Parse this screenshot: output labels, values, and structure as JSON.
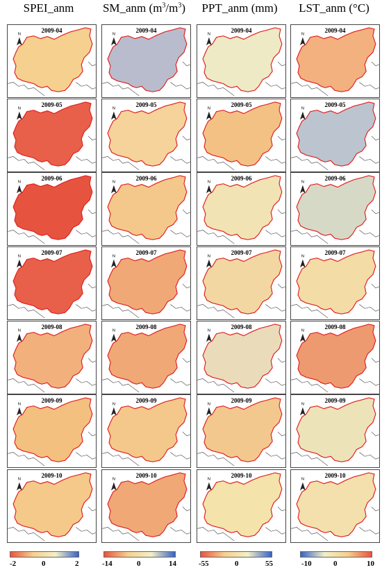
{
  "columns": [
    {
      "header": "SPEI_anm",
      "header_sup": ""
    },
    {
      "header": "SM_anm (m",
      "header_sup": "3",
      "header_mid": "/m",
      "header_sup2": "3",
      "header_end": ")"
    },
    {
      "header": "PPT_anm (mm)",
      "header_sup": ""
    },
    {
      "header": "LST_anm (°C)",
      "header_sup": ""
    }
  ],
  "dates": [
    "2009-04",
    "2009-05",
    "2009-06",
    "2009-07",
    "2009-08",
    "2009-09",
    "2009-10"
  ],
  "north_label": "N",
  "legends": [
    {
      "ticks": [
        "-2",
        "0",
        "2"
      ],
      "gradient": [
        "#e8553f",
        "#f7cf8e",
        "#f2f0c8",
        "#3a63c4"
      ]
    },
    {
      "ticks": [
        "-14",
        "0",
        "14"
      ],
      "gradient": [
        "#e8553f",
        "#f7cf8e",
        "#f2f0c8",
        "#3a63c4"
      ]
    },
    {
      "ticks": [
        "-55",
        "0",
        "55"
      ],
      "gradient": [
        "#e8553f",
        "#f7cf8e",
        "#f2f0c8",
        "#3a63c4"
      ]
    },
    {
      "ticks": [
        "-10",
        "0",
        "10"
      ],
      "gradient": [
        "#3a63c4",
        "#f2f0c8",
        "#f7cf8e",
        "#e8553f"
      ]
    }
  ],
  "panel_fill": [
    [
      "#f6d08f",
      "#e8604a",
      "#e65440",
      "#e8604a",
      "#f2b07c",
      "#f4c07f",
      "#f5c98a"
    ],
    [
      "#b9bccc",
      "#f5d39a",
      "#f4c88a",
      "#f0a877",
      "#f0a877",
      "#f4c88a",
      "#f0a877"
    ],
    [
      "#eeeac6",
      "#f4c184",
      "#f1e3b3",
      "#f3d7a2",
      "#eadcbb",
      "#f3c88e",
      "#f4e3ab"
    ],
    [
      "#f2b17f",
      "#bcc4cf",
      "#d7d9c7",
      "#f3dca6",
      "#ee9a70",
      "#ece3b9",
      "#f3e0ad"
    ]
  ],
  "colors": {
    "boundary": "#e02020",
    "outline": "#555555",
    "frame": "#444444"
  }
}
